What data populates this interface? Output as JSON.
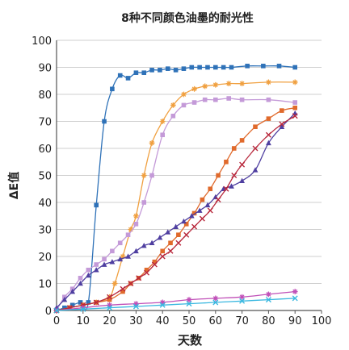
{
  "chart_data": {
    "type": "line",
    "title": "8种不同颜色油墨的耐光性",
    "xlabel": "天数",
    "ylabel": "ΔE值",
    "xlim": [
      0,
      100
    ],
    "ylim": [
      0,
      100
    ],
    "xticks": [
      0,
      10,
      20,
      30,
      40,
      50,
      60,
      70,
      80,
      90,
      100
    ],
    "yticks": [
      0,
      10,
      20,
      30,
      40,
      50,
      60,
      70,
      80,
      90,
      100
    ],
    "grid": "horizontal",
    "series": [
      {
        "color": "#2f72b8",
        "marker": "square",
        "x": [
          0,
          3,
          6,
          9,
          12,
          15,
          18,
          21,
          24,
          27,
          30,
          33,
          36,
          39,
          42,
          45,
          48,
          51,
          54,
          57,
          60,
          63,
          66,
          72,
          78,
          84,
          90
        ],
        "y": [
          0,
          1,
          2,
          3,
          3,
          39,
          70,
          82,
          87,
          86,
          88,
          88,
          89,
          89,
          89.5,
          89,
          89.5,
          90,
          90,
          90,
          90,
          90,
          90,
          90.5,
          90.5,
          90.5,
          90
        ]
      },
      {
        "color": "#f0a040",
        "marker": "asterisk",
        "x": [
          0,
          5,
          10,
          15,
          20,
          22,
          25,
          28,
          30,
          33,
          36,
          40,
          44,
          48,
          52,
          56,
          60,
          65,
          70,
          80,
          90
        ],
        "y": [
          0,
          1,
          2,
          3,
          5,
          10,
          20,
          30,
          35,
          50,
          62,
          70,
          76,
          80,
          82,
          83,
          83.5,
          84,
          84,
          84.5,
          84.5
        ]
      },
      {
        "color": "#c49ad8",
        "marker": "square",
        "x": [
          0,
          3,
          6,
          9,
          12,
          15,
          18,
          21,
          24,
          27,
          30,
          33,
          36,
          40,
          44,
          48,
          52,
          56,
          60,
          65,
          70,
          80,
          90
        ],
        "y": [
          0,
          5,
          8,
          12,
          15,
          17,
          19,
          22,
          25,
          28,
          32,
          40,
          50,
          65,
          72,
          76,
          77,
          78,
          78,
          78.5,
          78,
          78,
          77
        ]
      },
      {
        "color": "#e06a2c",
        "marker": "square",
        "x": [
          0,
          5,
          10,
          15,
          20,
          25,
          28,
          31,
          34,
          37,
          40,
          43,
          46,
          49,
          52,
          55,
          58,
          61,
          64,
          67,
          70,
          75,
          80,
          85,
          90
        ],
        "y": [
          0,
          1,
          2,
          3,
          4,
          7,
          10,
          12,
          15,
          18,
          22,
          25,
          28,
          32,
          36,
          41,
          45,
          50,
          55,
          60,
          63,
          68,
          71,
          74,
          75
        ]
      },
      {
        "color": "#4f3fa0",
        "marker": "triangle",
        "x": [
          0,
          3,
          6,
          9,
          12,
          15,
          18,
          21,
          24,
          27,
          30,
          33,
          36,
          39,
          42,
          45,
          48,
          51,
          54,
          57,
          60,
          63,
          66,
          70,
          75,
          80,
          85,
          90
        ],
        "y": [
          1,
          4,
          7,
          10,
          13,
          15,
          17,
          18,
          19,
          20,
          22,
          24,
          25,
          27,
          29,
          31,
          33,
          35,
          37,
          39,
          42,
          45,
          46,
          48,
          52,
          62,
          68,
          73
        ]
      },
      {
        "color": "#b8283c",
        "marker": "x",
        "x": [
          0,
          5,
          10,
          15,
          20,
          25,
          28,
          31,
          34,
          37,
          40,
          43,
          46,
          49,
          52,
          55,
          58,
          61,
          64,
          67,
          70,
          75,
          80,
          85,
          90
        ],
        "y": [
          0,
          1,
          2,
          3,
          5,
          8,
          10,
          12,
          14,
          17,
          20,
          22,
          25,
          28,
          31,
          34,
          37,
          41,
          45,
          50,
          54,
          60,
          65,
          69,
          72
        ]
      },
      {
        "color": "#c050b8",
        "marker": "asterisk",
        "x": [
          0,
          10,
          20,
          30,
          40,
          50,
          60,
          70,
          80,
          90
        ],
        "y": [
          0,
          1,
          2,
          2.5,
          3,
          4,
          4.5,
          5,
          6,
          7
        ]
      },
      {
        "color": "#3ab8e0",
        "marker": "x",
        "x": [
          0,
          10,
          20,
          30,
          40,
          50,
          60,
          70,
          80,
          90
        ],
        "y": [
          0,
          0.5,
          1,
          1.5,
          2,
          2.5,
          3,
          3.5,
          4,
          4.5
        ]
      }
    ]
  }
}
